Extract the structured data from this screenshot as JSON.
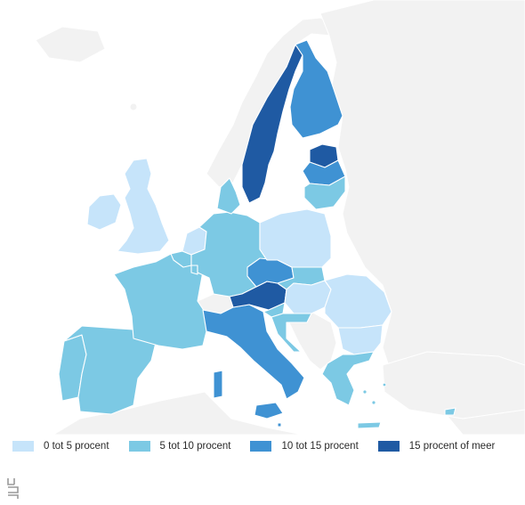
{
  "colors": {
    "sea": "#ffffff",
    "land_other": "#f2f2f2",
    "border": "#ffffff",
    "class_1": "#c6e4fa",
    "class_2": "#7cc9e4",
    "class_3": "#3f92d3",
    "class_4": "#1f5aa3"
  },
  "legend": [
    {
      "label": "0 tot 5 procent",
      "color": "#c6e4fa"
    },
    {
      "label": "5 tot 10 procent",
      "color": "#7cc9e4"
    },
    {
      "label": "10 tot 15 procent",
      "color": "#3f92d3"
    },
    {
      "label": "15 procent of meer",
      "color": "#1f5aa3"
    }
  ],
  "countries": [
    {
      "name": "Ierland",
      "class": 1
    },
    {
      "name": "Verenigd Koninkrijk",
      "class": 1
    },
    {
      "name": "Portugal",
      "class": 2
    },
    {
      "name": "Spanje",
      "class": 2
    },
    {
      "name": "Frankrijk",
      "class": 2
    },
    {
      "name": "België",
      "class": 2
    },
    {
      "name": "Nederland",
      "class": 1
    },
    {
      "name": "Luxemburg",
      "class": 2
    },
    {
      "name": "Duitsland",
      "class": 2
    },
    {
      "name": "Denemarken",
      "class": 2
    },
    {
      "name": "Italië",
      "class": 3
    },
    {
      "name": "Malta",
      "class": 3
    },
    {
      "name": "Oostenrijk",
      "class": 4
    },
    {
      "name": "Tsjechië",
      "class": 3
    },
    {
      "name": "Polen",
      "class": 1
    },
    {
      "name": "Slowakije",
      "class": 2
    },
    {
      "name": "Hongarije",
      "class": 1
    },
    {
      "name": "Slovenië",
      "class": 2
    },
    {
      "name": "Kroatië",
      "class": 2
    },
    {
      "name": "Roemenië",
      "class": 1
    },
    {
      "name": "Bulgarije",
      "class": 1
    },
    {
      "name": "Griekenland",
      "class": 2
    },
    {
      "name": "Cyprus",
      "class": 2
    },
    {
      "name": "Zweden",
      "class": 4
    },
    {
      "name": "Finland",
      "class": 3
    },
    {
      "name": "Estland",
      "class": 4
    },
    {
      "name": "Letland",
      "class": 3
    },
    {
      "name": "Litouwen",
      "class": 2
    }
  ],
  "logo": "cbs-logo"
}
